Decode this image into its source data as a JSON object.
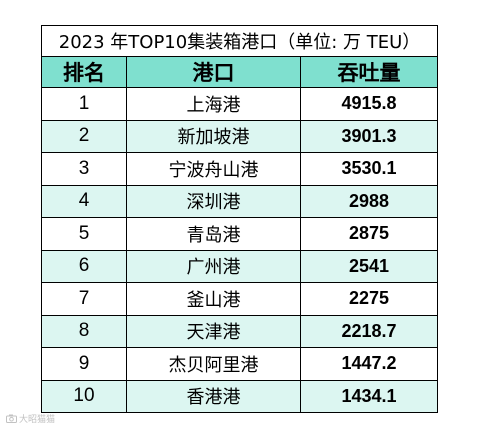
{
  "table": {
    "title": "2023 年TOP10集装箱港口（单位: 万 TEU）",
    "headers": {
      "rank": "排名",
      "port": "港口",
      "throughput": "吞吐量"
    },
    "rows": [
      {
        "rank": "1",
        "port": "上海港",
        "throughput": "4915.8"
      },
      {
        "rank": "2",
        "port": "新加坡港",
        "throughput": "3901.3"
      },
      {
        "rank": "3",
        "port": "宁波舟山港",
        "throughput": "3530.1"
      },
      {
        "rank": "4",
        "port": "深圳港",
        "throughput": "2988"
      },
      {
        "rank": "5",
        "port": "青岛港",
        "throughput": "2875"
      },
      {
        "rank": "6",
        "port": "广州港",
        "throughput": "2541"
      },
      {
        "rank": "7",
        "port": "釜山港",
        "throughput": "2275"
      },
      {
        "rank": "8",
        "port": "天津港",
        "throughput": "2218.7"
      },
      {
        "rank": "9",
        "port": "杰贝阿里港",
        "throughput": "1447.2"
      },
      {
        "rank": "10",
        "port": "香港港",
        "throughput": "1434.1"
      }
    ]
  },
  "colors": {
    "header_bg": "#7fe0cf",
    "stripe_bg": "#dcf6f1",
    "border": "#000000"
  },
  "watermark": {
    "text": "大昭猫猫",
    "icon": "camera-logo-icon"
  }
}
